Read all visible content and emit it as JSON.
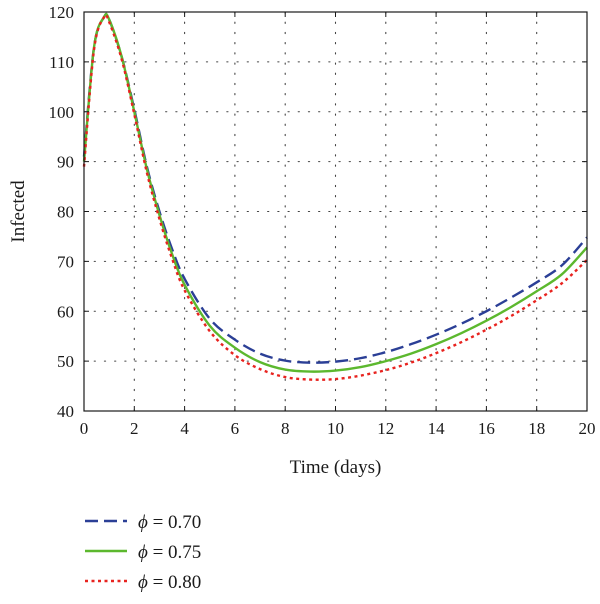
{
  "chart_data": {
    "type": "line",
    "title": "",
    "xlabel": "Time (days)",
    "ylabel": "Infected",
    "xlim": [
      0,
      20
    ],
    "ylim": [
      40,
      120
    ],
    "x_ticks": [
      "0",
      "2",
      "4",
      "6",
      "8",
      "10",
      "12",
      "14",
      "16",
      "18",
      "20"
    ],
    "y_ticks": [
      "40",
      "50",
      "60",
      "70",
      "80",
      "90",
      "100",
      "110",
      "120"
    ],
    "grid": true,
    "grid_style": "dotted",
    "legend_position": "bottom-left, below plot",
    "x": [
      0,
      0.4,
      0.8,
      1.0,
      1.5,
      2,
      2.5,
      3,
      3.5,
      4,
      5,
      6,
      7,
      8,
      9,
      10,
      11,
      12,
      13,
      14,
      15,
      16,
      17,
      18,
      19,
      20
    ],
    "series": [
      {
        "name": "ϕ = 0.70",
        "color": "#2b3f96",
        "dash": "dash",
        "values": [
          91,
          113,
          119,
          118.5,
          111,
          100.5,
          89,
          80,
          72.5,
          66.5,
          58.5,
          54.3,
          51.5,
          50.1,
          49.7,
          49.9,
          50.6,
          51.8,
          53.4,
          55.3,
          57.5,
          60,
          62.8,
          65.8,
          69.2,
          74.8
        ]
      },
      {
        "name": "ϕ = 0.75",
        "color": "#5cb82e",
        "dash": "solid",
        "values": [
          90,
          113,
          119,
          118.5,
          111,
          100,
          88.5,
          79.3,
          71.5,
          65.3,
          57.1,
          52.7,
          49.8,
          48.3,
          47.9,
          48.1,
          48.8,
          50,
          51.5,
          53.4,
          55.6,
          58.1,
          60.9,
          64,
          67.4,
          72.8
        ]
      },
      {
        "name": "ϕ = 0.80",
        "color": "#e8231f",
        "dash": "dot",
        "values": [
          89,
          112.5,
          119,
          118,
          110.5,
          99.5,
          87.8,
          78.5,
          70.6,
          64.2,
          56,
          51.2,
          48.4,
          46.8,
          46.3,
          46.4,
          47.1,
          48.2,
          49.7,
          51.6,
          53.8,
          56.3,
          59.1,
          62.2,
          65.6,
          70.3
        ]
      }
    ]
  },
  "legend": {
    "items": [
      {
        "symbol": "ϕ",
        "text": " = 0.70"
      },
      {
        "symbol": "ϕ",
        "text": " = 0.75"
      },
      {
        "symbol": "ϕ",
        "text": " = 0.80"
      }
    ]
  }
}
